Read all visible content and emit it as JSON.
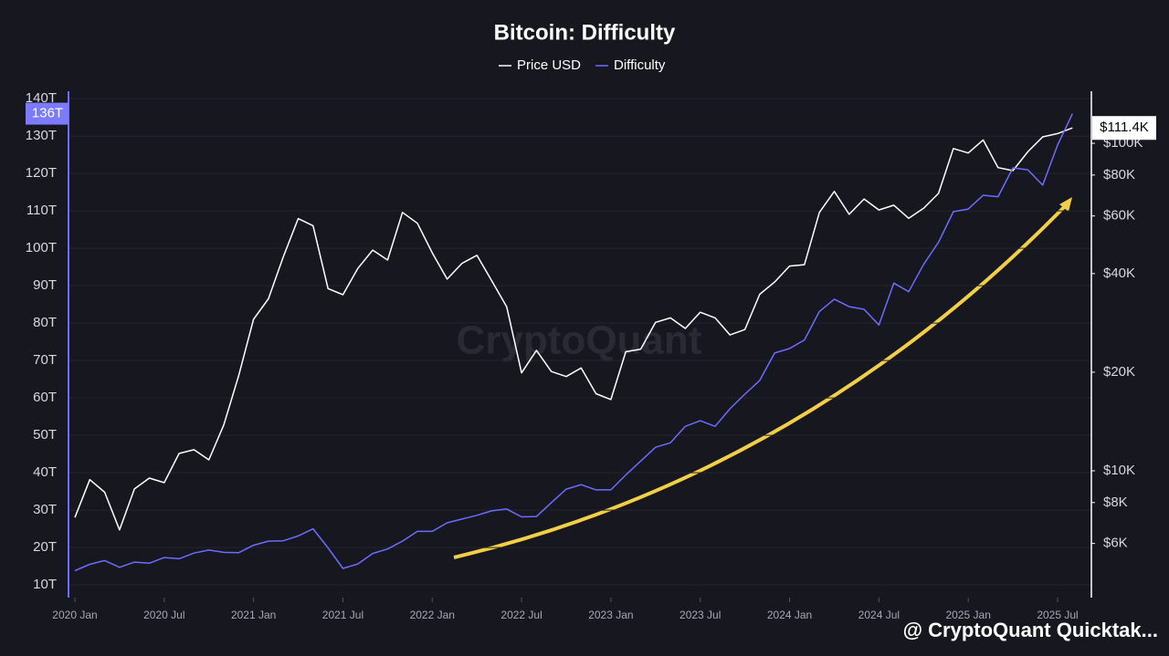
{
  "chart_data": {
    "type": "line",
    "title": "Bitcoin: Difficulty",
    "x": [
      "2020-01",
      "2020-02",
      "2020-03",
      "2020-04",
      "2020-05",
      "2020-06",
      "2020-07",
      "2020-08",
      "2020-09",
      "2020-10",
      "2020-11",
      "2020-12",
      "2021-01",
      "2021-02",
      "2021-03",
      "2021-04",
      "2021-05",
      "2021-06",
      "2021-07",
      "2021-08",
      "2021-09",
      "2021-10",
      "2021-11",
      "2021-12",
      "2022-01",
      "2022-02",
      "2022-03",
      "2022-04",
      "2022-05",
      "2022-06",
      "2022-07",
      "2022-08",
      "2022-09",
      "2022-10",
      "2022-11",
      "2022-12",
      "2023-01",
      "2023-02",
      "2023-03",
      "2023-04",
      "2023-05",
      "2023-06",
      "2023-07",
      "2023-08",
      "2023-09",
      "2023-10",
      "2023-11",
      "2023-12",
      "2024-01",
      "2024-02",
      "2024-03",
      "2024-04",
      "2024-05",
      "2024-06",
      "2024-07",
      "2024-08",
      "2024-09",
      "2024-10",
      "2024-11",
      "2024-12",
      "2025-01",
      "2025-02",
      "2025-03",
      "2025-04",
      "2025-05",
      "2025-06",
      "2025-07",
      "2025-08"
    ],
    "series": [
      {
        "name": "Price USD",
        "color": "#ffffff",
        "axis": "y2",
        "values": [
          7200,
          9400,
          8600,
          6600,
          8800,
          9500,
          9200,
          11300,
          11600,
          10800,
          13800,
          19500,
          29000,
          33500,
          45000,
          58900,
          56000,
          36000,
          34500,
          41500,
          47200,
          44000,
          61500,
          57000,
          46300,
          38500,
          43000,
          45500,
          38000,
          31700,
          19900,
          23300,
          20100,
          19400,
          20600,
          17200,
          16500,
          23100,
          23500,
          28400,
          29300,
          27200,
          30500,
          29300,
          26000,
          27000,
          34600,
          37700,
          42200,
          42600,
          61500,
          71300,
          60700,
          67600,
          62600,
          64700,
          59000,
          63300,
          70300,
          96400,
          93400,
          102400,
          84300,
          82500,
          94200,
          104600,
          107100,
          111400
        ]
      },
      {
        "name": "Difficulty",
        "color": "#6c6cff",
        "values": [
          13.8,
          15.5,
          16.5,
          14.7,
          16.1,
          15.8,
          17.3,
          17.0,
          18.5,
          19.3,
          18.7,
          18.6,
          20.6,
          21.7,
          21.8,
          23.1,
          25.0,
          19.9,
          14.4,
          15.6,
          18.4,
          19.6,
          21.7,
          24.3,
          24.3,
          26.6,
          27.6,
          28.6,
          29.8,
          30.3,
          28.2,
          28.3,
          32.0,
          35.6,
          36.8,
          35.4,
          35.4,
          39.4,
          43.1,
          46.8,
          48.0,
          52.4,
          53.9,
          52.4,
          57.1,
          61.0,
          64.7,
          72.0,
          73.2,
          75.5,
          83.1,
          86.4,
          84.4,
          83.7,
          79.5,
          90.7,
          88.4,
          95.7,
          101.6,
          109.8,
          110.5,
          114.2,
          113.8,
          121.5,
          121.0,
          116.9,
          127.6,
          136.0
        ]
      }
    ],
    "ylim": [
      6.6,
      142
    ],
    "yticks": [
      {
        "value": 10,
        "label": "10T"
      },
      {
        "value": 20,
        "label": "20T"
      },
      {
        "value": 30,
        "label": "30T"
      },
      {
        "value": 40,
        "label": "40T"
      },
      {
        "value": 50,
        "label": "50T"
      },
      {
        "value": 60,
        "label": "60T"
      },
      {
        "value": 70,
        "label": "70T"
      },
      {
        "value": 80,
        "label": "80T"
      },
      {
        "value": 90,
        "label": "90T"
      },
      {
        "value": 100,
        "label": "100T"
      },
      {
        "value": 110,
        "label": "110T"
      },
      {
        "value": 120,
        "label": "120T"
      },
      {
        "value": 130,
        "label": "130T"
      },
      {
        "value": 140,
        "label": "140T"
      }
    ],
    "y2lim": [
      4100,
      144200
    ],
    "y2log": true,
    "y2ticks": [
      {
        "value": 6000,
        "label": "$6K"
      },
      {
        "value": 8000,
        "label": "$8K"
      },
      {
        "value": 10000,
        "label": "$10K"
      },
      {
        "value": 20000,
        "label": "$20K"
      },
      {
        "value": 40000,
        "label": "$40K"
      },
      {
        "value": 60000,
        "label": "$60K"
      },
      {
        "value": 80000,
        "label": "$80K"
      },
      {
        "value": 100000,
        "label": "$100K"
      }
    ],
    "xticks": [
      {
        "value": "2020-01",
        "label": "2020 Jan"
      },
      {
        "value": "2020-07",
        "label": "2020 Jul"
      },
      {
        "value": "2021-01",
        "label": "2021 Jan"
      },
      {
        "value": "2021-07",
        "label": "2021 Jul"
      },
      {
        "value": "2022-01",
        "label": "2022 Jan"
      },
      {
        "value": "2022-07",
        "label": "2022 Jul"
      },
      {
        "value": "2023-01",
        "label": "2023 Jan"
      },
      {
        "value": "2023-07",
        "label": "2023 Jul"
      },
      {
        "value": "2024-01",
        "label": "2024 Jan"
      },
      {
        "value": "2024-07",
        "label": "2024 Jul"
      },
      {
        "value": "2025-01",
        "label": "2025 Jan"
      },
      {
        "value": "2025-07",
        "label": "2025 Jul"
      }
    ],
    "grid": true,
    "legend": "top",
    "annotations": {
      "difficulty_badge": "136T",
      "price_badge": "$111.4K",
      "watermark": "CryptoQuant",
      "footer": "@ CryptoQuant Quicktak..."
    }
  }
}
